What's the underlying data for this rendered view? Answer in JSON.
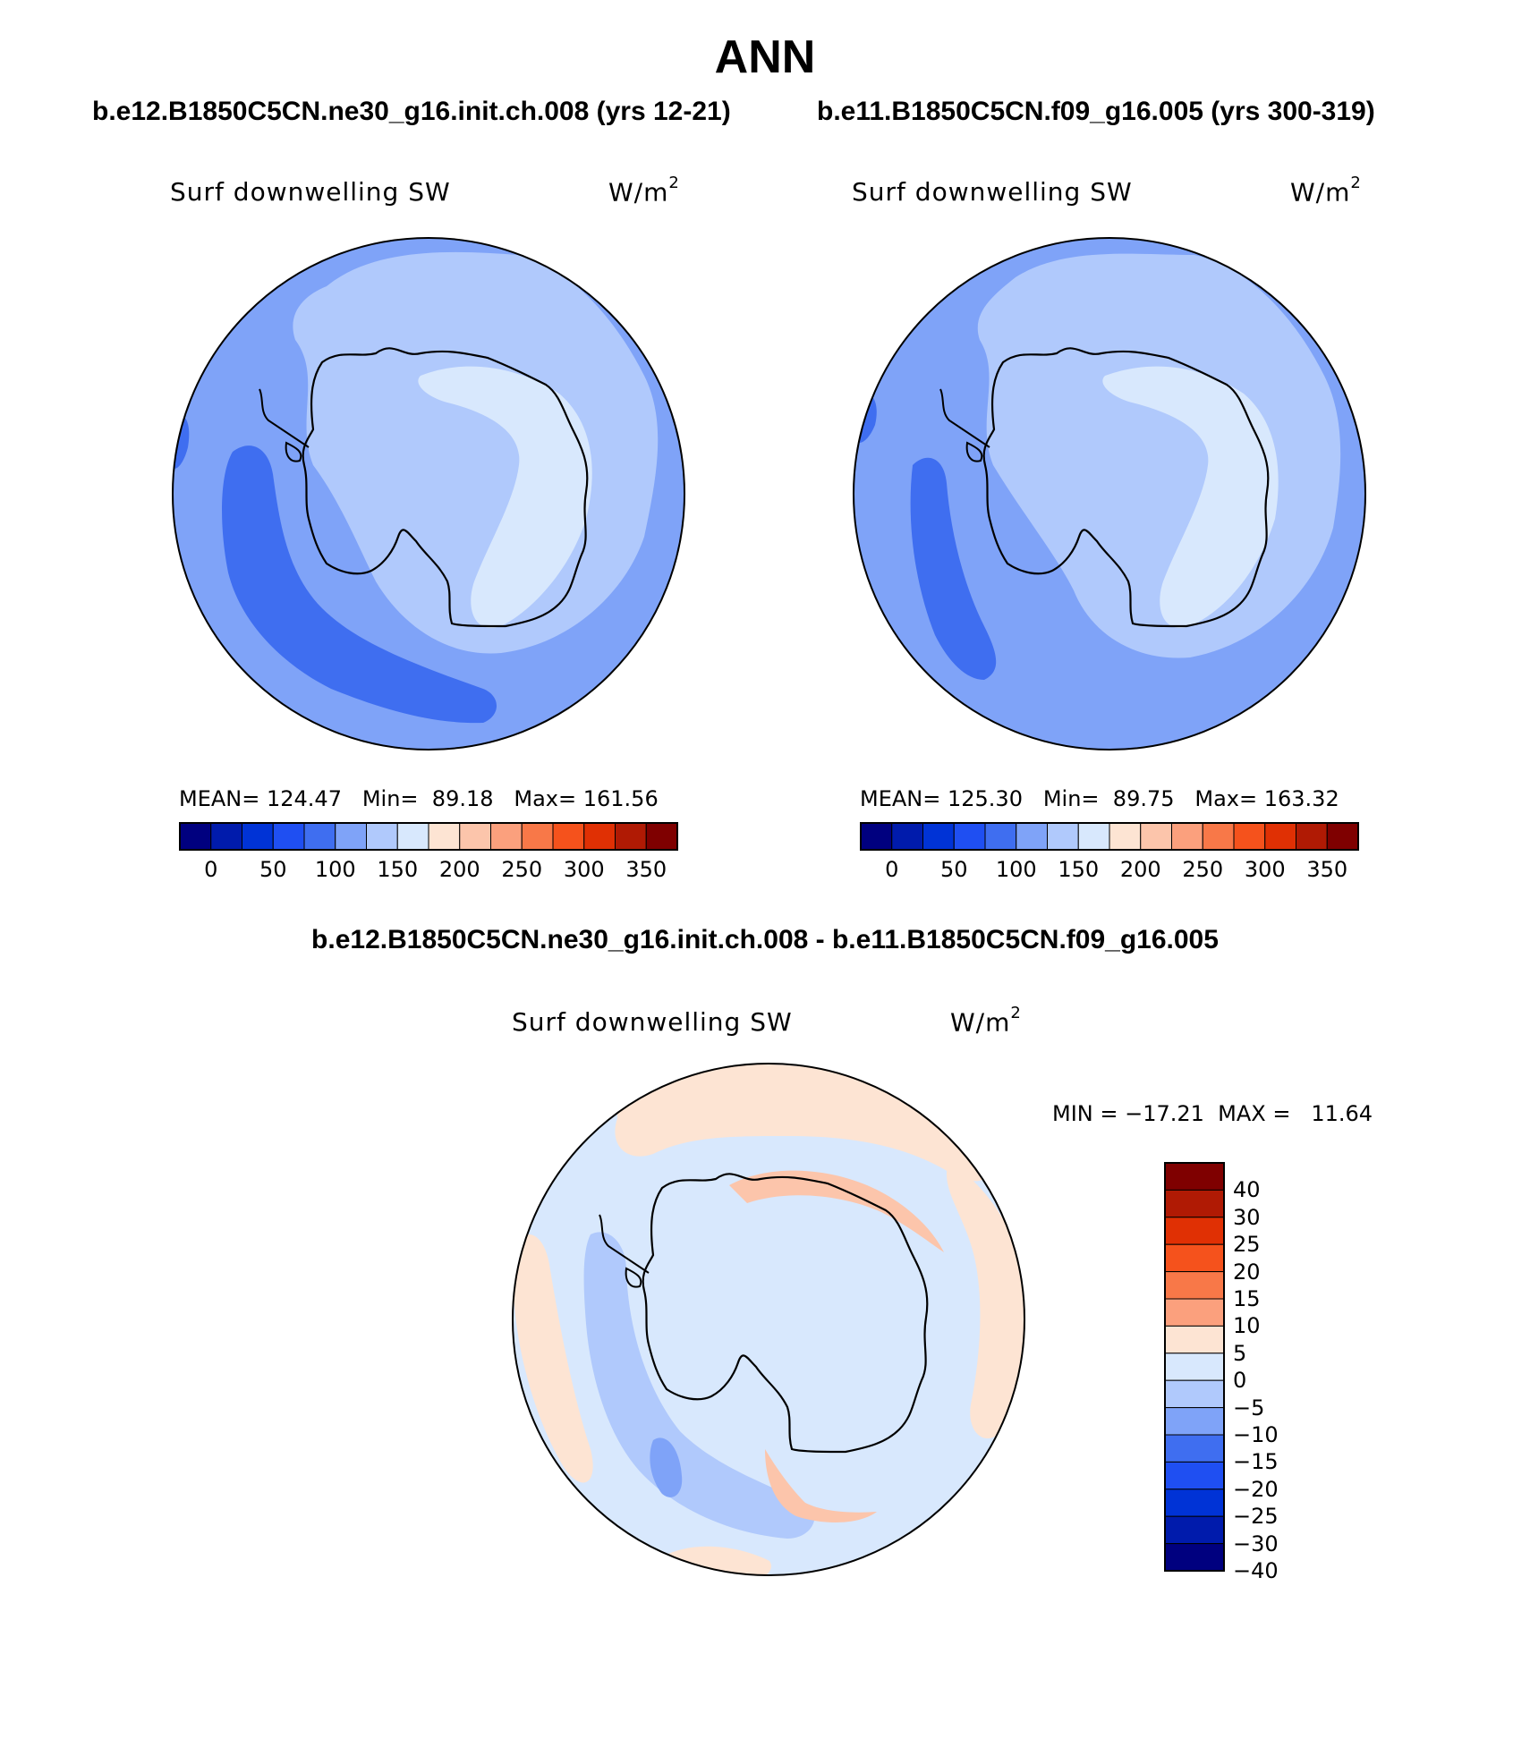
{
  "main_title": "ANN",
  "panels": [
    {
      "case_title": "b.e12.B1850C5CN.ne30_g16.init.ch.008 (yrs 12-21)",
      "variable": "Surf downwelling SW",
      "units": "W/m",
      "units_sup": "2",
      "stats": "MEAN= 124.47   Min=  89.18   Max= 161.56"
    },
    {
      "case_title": "b.e11.B1850C5CN.f09_g16.005 (yrs 300-319)",
      "variable": "Surf downwelling SW",
      "units": "W/m",
      "units_sup": "2",
      "stats": "MEAN= 125.30   Min=  89.75   Max= 163.32"
    }
  ],
  "difference_panel": {
    "title": "b.e12.B1850C5CN.ne30_g16.init.ch.008 - b.e11.B1850C5CN.f09_g16.005",
    "variable": "Surf downwelling SW",
    "units": "W/m",
    "units_sup": "2",
    "minmax": "MIN = −17.21  MAX =   11.64"
  },
  "abs_colorbar": {
    "colors": [
      "#00007f",
      "#001bac",
      "#0033d6",
      "#1f4ff2",
      "#3f6ef0",
      "#7fa3f8",
      "#b0c9fc",
      "#d8e8fd",
      "#fde4d3",
      "#fcc5ab",
      "#fba07d",
      "#f87848",
      "#f5521c",
      "#e03004",
      "#b01a04",
      "#7f0000"
    ],
    "labels": [
      "0",
      "50",
      "100",
      "150",
      "200",
      "250",
      "300",
      "350"
    ]
  },
  "diff_colorbar": {
    "colors": [
      "#7f0000",
      "#b01a04",
      "#e03004",
      "#f5521c",
      "#f87848",
      "#fba07d",
      "#fde4d3",
      "#d8e8fd",
      "#b0c9fc",
      "#7fa3f8",
      "#3f6ef0",
      "#1f4ff2",
      "#0033d6",
      "#001bac",
      "#00007f"
    ],
    "labels": [
      "40",
      "30",
      "25",
      "20",
      "15",
      "10",
      "5",
      "0",
      "−5",
      "−10",
      "−15",
      "−20",
      "−25",
      "−30",
      "−40"
    ]
  },
  "map_colors": {
    "abs_100_125": "#7fa3f8",
    "abs_75_100": "#3f6ef0",
    "abs_125_150": "#b0c9fc",
    "abs_150_175": "#d8e8fd",
    "diff_0_neg5": "#d8e8fd",
    "diff_0_5": "#fde4d3",
    "diff_neg5_neg10": "#b0c9fc",
    "diff_neg10_neg15": "#7fa3f8",
    "diff_5_10": "#fcc5ab"
  }
}
